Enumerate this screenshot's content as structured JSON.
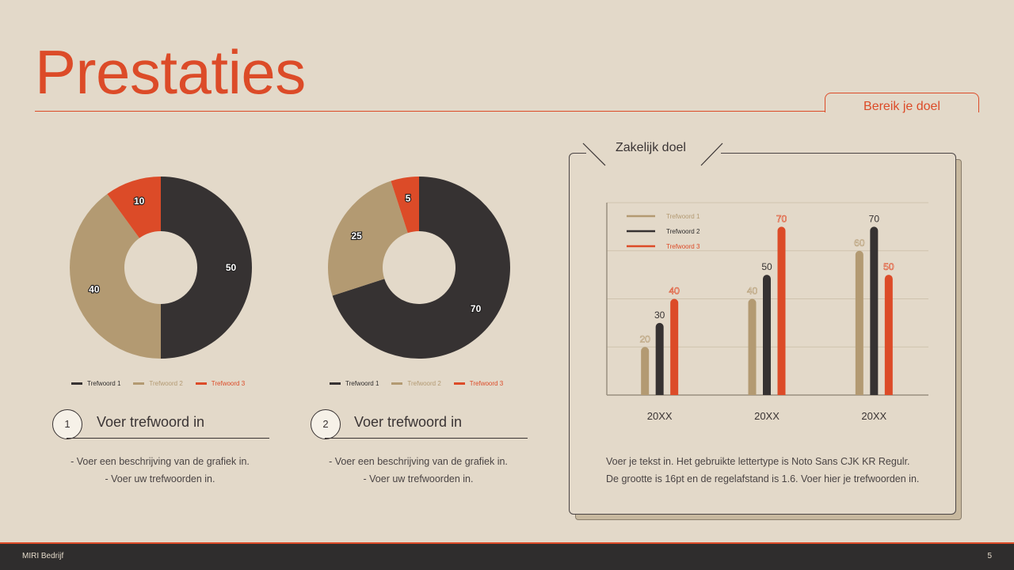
{
  "slide": {
    "title": "Prestaties",
    "goal_tab": "Bereik je doel",
    "page_number": "5",
    "company": "MIRI Bedrijf"
  },
  "keywords": [
    {
      "number": "1",
      "title": "Voer trefwoord in",
      "desc_lines": [
        "- Voer een beschrijving van de grafiek in.",
        "- Voer uw trefwoorden in."
      ]
    },
    {
      "number": "2",
      "title": "Voer trefwoord in",
      "desc_lines": [
        "- Voer een beschrijving van de grafiek in.",
        "- Voer uw trefwoorden in."
      ]
    }
  ],
  "card": {
    "title": "Zakelijk doel",
    "text_lines": [
      "Voer je tekst in. Het gebruikte lettertype is Noto Sans CJK KR Regulr.",
      "De grootte is 16pt en de regelafstand is 1.6. Voer hier je trefwoorden in."
    ]
  },
  "colors": {
    "accent": "#dc4b28",
    "dark": "#363232",
    "tan": "#b39a72",
    "background": "#e3d9c9"
  },
  "chart_data": [
    {
      "type": "pie",
      "donut": true,
      "categories": [
        "Trefwoord 1",
        "Trefwoord 2",
        "Trefwoord 3"
      ],
      "values": [
        50,
        40,
        10
      ],
      "colors": [
        "#363232",
        "#b39a72",
        "#dc4b28"
      ]
    },
    {
      "type": "pie",
      "donut": true,
      "categories": [
        "Trefwoord 1",
        "Trefwoord 2",
        "Trefwoord 3"
      ],
      "values": [
        70,
        25,
        5
      ],
      "colors": [
        "#363232",
        "#b39a72",
        "#dc4b28"
      ]
    },
    {
      "type": "bar",
      "categories": [
        "20XX",
        "20XX",
        "20XX"
      ],
      "series": [
        {
          "name": "Trefwoord 1",
          "values": [
            20,
            40,
            60
          ],
          "color": "#b39a72"
        },
        {
          "name": "Trefwoord 2",
          "values": [
            30,
            50,
            70
          ],
          "color": "#363232"
        },
        {
          "name": "Trefwoord 3",
          "values": [
            40,
            70,
            50
          ],
          "color": "#dc4b28"
        }
      ],
      "ylim": [
        0,
        80
      ],
      "grid": true,
      "legend": "top-left"
    }
  ]
}
